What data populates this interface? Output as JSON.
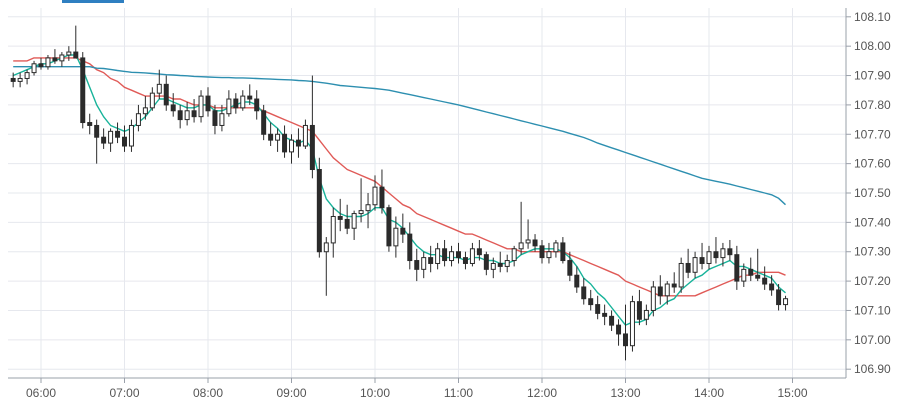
{
  "chart_data": {
    "type": "candlestick",
    "title": "",
    "xlabel": "",
    "ylabel": "",
    "ylim": [
      106.87,
      108.13
    ],
    "y_axis_side": "right",
    "y_ticks": [
      "108.10",
      "108.00",
      "107.90",
      "107.80",
      "107.70",
      "107.60",
      "107.50",
      "107.40",
      "107.30",
      "107.20",
      "107.10",
      "107.00",
      "106.90"
    ],
    "x_ticks": [
      "06:00",
      "07:00",
      "08:00",
      "09:00",
      "10:00",
      "11:00",
      "12:00",
      "13:00",
      "14:00",
      "15:00"
    ],
    "grid": true,
    "candle_interval_minutes": 5,
    "start_time": "05:40",
    "candles": [
      [
        107.89,
        107.91,
        107.86,
        107.88
      ],
      [
        107.88,
        107.91,
        107.86,
        107.89
      ],
      [
        107.89,
        107.92,
        107.87,
        107.91
      ],
      [
        107.91,
        107.95,
        107.9,
        107.94
      ],
      [
        107.94,
        107.96,
        107.92,
        107.93
      ],
      [
        107.93,
        107.97,
        107.92,
        107.96
      ],
      [
        107.96,
        107.99,
        107.94,
        107.95
      ],
      [
        107.95,
        107.98,
        107.93,
        107.97
      ],
      [
        107.97,
        108.0,
        107.95,
        107.98
      ],
      [
        107.98,
        108.07,
        107.96,
        107.96
      ],
      [
        107.96,
        107.98,
        107.72,
        107.74
      ],
      [
        107.74,
        107.77,
        107.7,
        107.73
      ],
      [
        107.73,
        107.75,
        107.6,
        107.69
      ],
      [
        107.69,
        107.72,
        107.65,
        107.67
      ],
      [
        107.67,
        107.72,
        107.64,
        107.71
      ],
      [
        107.71,
        107.74,
        107.67,
        107.69
      ],
      [
        107.69,
        107.73,
        107.64,
        107.66
      ],
      [
        107.66,
        107.75,
        107.64,
        107.73
      ],
      [
        107.73,
        107.8,
        107.71,
        107.77
      ],
      [
        107.77,
        107.83,
        107.75,
        107.79
      ],
      [
        107.79,
        107.86,
        107.78,
        107.84
      ],
      [
        107.84,
        107.92,
        107.82,
        107.87
      ],
      [
        107.87,
        107.9,
        107.78,
        107.8
      ],
      [
        107.8,
        107.84,
        107.76,
        107.78
      ],
      [
        107.78,
        107.8,
        107.72,
        107.75
      ],
      [
        107.75,
        107.81,
        107.73,
        107.78
      ],
      [
        107.78,
        107.82,
        107.74,
        107.76
      ],
      [
        107.76,
        107.85,
        107.74,
        107.83
      ],
      [
        107.83,
        107.86,
        107.76,
        107.78
      ],
      [
        107.78,
        107.8,
        107.7,
        107.73
      ],
      [
        107.73,
        107.8,
        107.71,
        107.77
      ],
      [
        107.77,
        107.85,
        107.76,
        107.82
      ],
      [
        107.82,
        107.84,
        107.77,
        107.79
      ],
      [
        107.79,
        107.85,
        107.78,
        107.83
      ],
      [
        107.83,
        107.87,
        107.8,
        107.82
      ],
      [
        107.82,
        107.85,
        107.75,
        107.78
      ],
      [
        107.78,
        107.8,
        107.68,
        107.7
      ],
      [
        107.7,
        107.74,
        107.66,
        107.68
      ],
      [
        107.68,
        107.72,
        107.64,
        107.7
      ],
      [
        107.7,
        107.73,
        107.62,
        107.64
      ],
      [
        107.64,
        107.7,
        107.6,
        107.68
      ],
      [
        107.68,
        107.72,
        107.62,
        107.66
      ],
      [
        107.66,
        107.75,
        107.65,
        107.73
      ],
      [
        107.73,
        107.9,
        107.55,
        107.58
      ],
      [
        107.58,
        107.62,
        107.28,
        107.3
      ],
      [
        107.3,
        107.35,
        107.15,
        107.33
      ],
      [
        107.33,
        107.45,
        107.28,
        107.42
      ],
      [
        107.42,
        107.48,
        107.37,
        107.41
      ],
      [
        107.41,
        107.46,
        107.36,
        107.38
      ],
      [
        107.38,
        107.44,
        107.34,
        107.43
      ],
      [
        107.43,
        107.55,
        107.4,
        107.44
      ],
      [
        107.44,
        107.5,
        107.38,
        107.46
      ],
      [
        107.46,
        107.56,
        107.44,
        107.52
      ],
      [
        107.52,
        107.58,
        107.43,
        107.45
      ],
      [
        107.45,
        107.46,
        107.3,
        107.32
      ],
      [
        107.32,
        107.42,
        107.28,
        107.38
      ],
      [
        107.38,
        107.43,
        107.33,
        107.36
      ],
      [
        107.36,
        107.4,
        107.24,
        107.27
      ],
      [
        107.27,
        107.31,
        107.2,
        107.24
      ],
      [
        107.24,
        107.3,
        107.21,
        107.28
      ],
      [
        107.28,
        107.32,
        107.23,
        107.26
      ],
      [
        107.26,
        107.33,
        107.24,
        107.31
      ],
      [
        107.31,
        107.34,
        107.25,
        107.27
      ],
      [
        107.27,
        107.32,
        107.25,
        107.3
      ],
      [
        107.3,
        107.33,
        107.26,
        107.28
      ],
      [
        107.28,
        107.3,
        107.24,
        107.26
      ],
      [
        107.26,
        107.33,
        107.25,
        107.31
      ],
      [
        107.31,
        107.34,
        107.27,
        107.29
      ],
      [
        107.29,
        107.3,
        107.22,
        107.24
      ],
      [
        107.24,
        107.28,
        107.21,
        107.26
      ],
      [
        107.26,
        107.3,
        107.23,
        107.25
      ],
      [
        107.25,
        107.29,
        107.23,
        107.27
      ],
      [
        107.27,
        107.32,
        107.25,
        107.31
      ],
      [
        107.31,
        107.47,
        107.29,
        107.33
      ],
      [
        107.33,
        107.41,
        107.31,
        107.34
      ],
      [
        107.34,
        107.36,
        107.3,
        107.32
      ],
      [
        107.32,
        107.34,
        107.26,
        107.28
      ],
      [
        107.28,
        107.33,
        107.26,
        107.3
      ],
      [
        107.3,
        107.34,
        107.28,
        107.33
      ],
      [
        107.33,
        107.35,
        107.26,
        107.27
      ],
      [
        107.27,
        107.3,
        107.2,
        107.22
      ],
      [
        107.22,
        107.25,
        107.16,
        107.18
      ],
      [
        107.18,
        107.21,
        107.12,
        107.14
      ],
      [
        107.14,
        107.17,
        107.1,
        107.12
      ],
      [
        107.12,
        107.15,
        107.07,
        107.09
      ],
      [
        107.09,
        107.12,
        107.05,
        107.08
      ],
      [
        107.08,
        107.1,
        107.03,
        107.05
      ],
      [
        107.05,
        107.07,
        106.98,
        107.02
      ],
      [
        107.02,
        107.12,
        106.93,
        106.98
      ],
      [
        106.98,
        107.15,
        106.96,
        107.13
      ],
      [
        107.13,
        107.17,
        107.05,
        107.07
      ],
      [
        107.07,
        107.12,
        107.05,
        107.1
      ],
      [
        107.1,
        107.2,
        107.08,
        107.18
      ],
      [
        107.18,
        107.22,
        107.12,
        107.15
      ],
      [
        107.15,
        107.2,
        107.12,
        107.19
      ],
      [
        107.19,
        107.23,
        107.16,
        107.18
      ],
      [
        107.18,
        107.28,
        107.16,
        107.26
      ],
      [
        107.26,
        107.31,
        107.21,
        107.23
      ],
      [
        107.23,
        107.3,
        107.21,
        107.28
      ],
      [
        107.28,
        107.33,
        107.24,
        107.26
      ],
      [
        107.26,
        107.32,
        107.24,
        107.3
      ],
      [
        107.3,
        107.35,
        107.26,
        107.28
      ],
      [
        107.28,
        107.33,
        107.25,
        107.31
      ],
      [
        107.31,
        107.34,
        107.27,
        107.29
      ],
      [
        107.29,
        107.32,
        107.17,
        107.2
      ],
      [
        107.2,
        107.26,
        107.18,
        107.24
      ],
      [
        107.24,
        107.28,
        107.2,
        107.22
      ],
      [
        107.22,
        107.31,
        107.2,
        107.21
      ],
      [
        107.21,
        107.25,
        107.17,
        107.19
      ],
      [
        107.19,
        107.22,
        107.15,
        107.17
      ],
      [
        107.17,
        107.19,
        107.1,
        107.12
      ],
      [
        107.12,
        107.15,
        107.1,
        107.14
      ]
    ],
    "series": [
      {
        "color": "#e05a57",
        "values": [
          107.95,
          107.95,
          107.95,
          107.96,
          107.96,
          107.96,
          107.96,
          107.96,
          107.96,
          107.96,
          107.95,
          107.94,
          107.92,
          107.91,
          107.89,
          107.88,
          107.86,
          107.85,
          107.84,
          107.83,
          107.83,
          107.83,
          107.83,
          107.82,
          107.82,
          107.81,
          107.8,
          107.8,
          107.8,
          107.79,
          107.79,
          107.79,
          107.79,
          107.79,
          107.79,
          107.79,
          107.78,
          107.77,
          107.76,
          107.75,
          107.74,
          107.73,
          107.72,
          107.71,
          107.68,
          107.65,
          107.62,
          107.6,
          107.58,
          107.57,
          107.56,
          107.55,
          107.54,
          107.52,
          107.5,
          107.48,
          107.46,
          107.45,
          107.43,
          107.42,
          107.41,
          107.4,
          107.39,
          107.38,
          107.37,
          107.36,
          107.36,
          107.35,
          107.34,
          107.33,
          107.32,
          107.31,
          107.31,
          107.3,
          107.3,
          107.3,
          107.3,
          107.3,
          107.3,
          107.3,
          107.29,
          107.28,
          107.27,
          107.26,
          107.25,
          107.24,
          107.23,
          107.22,
          107.2,
          107.19,
          107.18,
          107.17,
          107.16,
          107.15,
          107.15,
          107.15,
          107.15,
          107.15,
          107.15,
          107.16,
          107.17,
          107.18,
          107.19,
          107.2,
          107.21,
          107.22,
          107.22,
          107.23,
          107.23,
          107.23,
          107.23,
          107.22
        ]
      },
      {
        "color": "#17b39a",
        "values": [
          107.9,
          107.91,
          107.92,
          107.93,
          107.94,
          107.94,
          107.95,
          107.96,
          107.97,
          107.97,
          107.92,
          107.86,
          107.8,
          107.76,
          107.73,
          107.72,
          107.71,
          107.72,
          107.74,
          107.76,
          107.79,
          107.82,
          107.82,
          107.81,
          107.8,
          107.79,
          107.79,
          107.8,
          107.8,
          107.78,
          107.78,
          107.79,
          107.8,
          107.81,
          107.81,
          107.8,
          107.77,
          107.74,
          107.72,
          107.69,
          107.68,
          107.67,
          107.68,
          107.65,
          107.55,
          107.48,
          107.45,
          107.43,
          107.42,
          107.42,
          107.42,
          107.43,
          107.45,
          107.45,
          107.41,
          107.4,
          107.38,
          107.35,
          107.32,
          107.3,
          107.29,
          107.29,
          107.28,
          107.28,
          107.28,
          107.27,
          107.28,
          107.28,
          107.27,
          107.27,
          107.26,
          107.26,
          107.27,
          107.29,
          107.3,
          107.31,
          107.31,
          107.31,
          107.31,
          107.3,
          107.28,
          107.25,
          107.21,
          107.19,
          107.16,
          107.14,
          107.11,
          107.08,
          107.05,
          107.06,
          107.06,
          107.07,
          107.1,
          107.11,
          107.13,
          107.14,
          107.17,
          107.19,
          107.21,
          107.22,
          107.24,
          107.25,
          107.26,
          107.27,
          107.25,
          107.25,
          107.24,
          107.23,
          107.22,
          107.21,
          107.18,
          107.16
        ]
      },
      {
        "color": "#2d8fb0",
        "values": [
          107.93,
          107.93,
          107.93,
          107.93,
          107.93,
          107.93,
          107.93,
          107.93,
          107.93,
          107.93,
          107.93,
          107.93,
          107.925,
          107.924,
          107.921,
          107.917,
          107.914,
          107.911,
          107.91,
          107.909,
          107.907,
          107.905,
          107.903,
          107.902,
          107.9,
          107.899,
          107.897,
          107.896,
          107.895,
          107.894,
          107.893,
          107.893,
          107.892,
          107.892,
          107.891,
          107.89,
          107.889,
          107.888,
          107.887,
          107.886,
          107.885,
          107.883,
          107.882,
          107.88,
          107.877,
          107.874,
          107.87,
          107.866,
          107.864,
          107.862,
          107.86,
          107.858,
          107.856,
          107.853,
          107.85,
          107.845,
          107.84,
          107.835,
          107.83,
          107.825,
          107.82,
          107.815,
          107.81,
          107.805,
          107.8,
          107.794,
          107.788,
          107.782,
          107.776,
          107.77,
          107.764,
          107.758,
          107.752,
          107.746,
          107.74,
          107.734,
          107.728,
          107.722,
          107.716,
          107.71,
          107.703,
          107.696,
          107.689,
          107.68,
          107.67,
          107.662,
          107.654,
          107.646,
          107.638,
          107.63,
          107.622,
          107.614,
          107.606,
          107.598,
          107.59,
          107.582,
          107.574,
          107.566,
          107.558,
          107.55,
          107.545,
          107.54,
          107.535,
          107.53,
          107.524,
          107.518,
          107.512,
          107.506,
          107.5,
          107.494,
          107.482,
          107.46
        ]
      }
    ]
  }
}
